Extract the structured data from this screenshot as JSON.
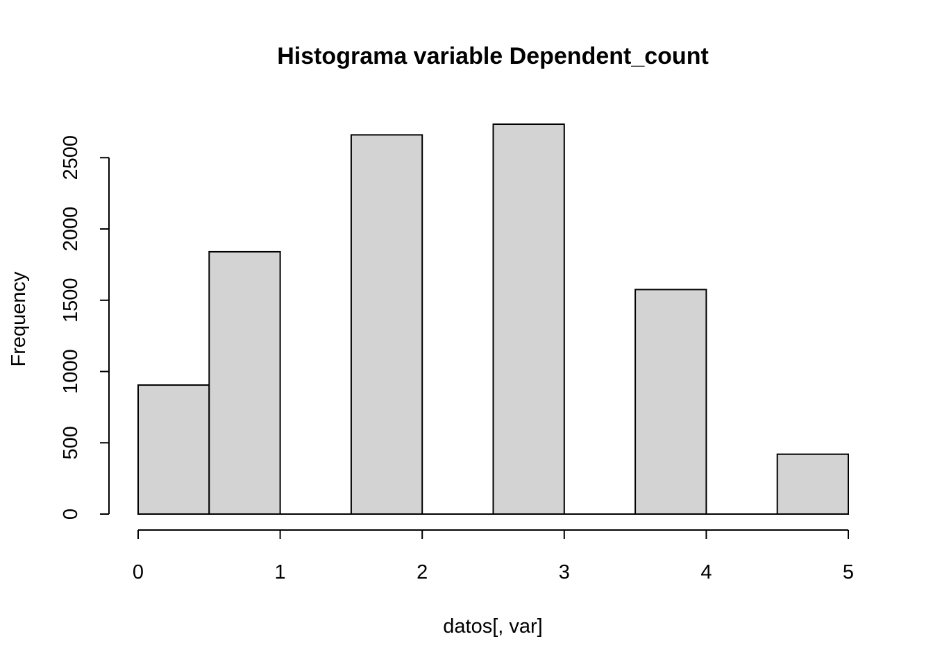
{
  "chart_data": {
    "type": "bar",
    "title": "Histograma variable Dependent_count",
    "xlabel": "datos[, var]",
    "ylabel": "Frequency",
    "bins": [
      {
        "start": 0.0,
        "end": 0.5,
        "count": 905
      },
      {
        "start": 0.5,
        "end": 1.0,
        "count": 1840
      },
      {
        "start": 1.0,
        "end": 1.5,
        "count": 0
      },
      {
        "start": 1.5,
        "end": 2.0,
        "count": 2660
      },
      {
        "start": 2.0,
        "end": 2.5,
        "count": 0
      },
      {
        "start": 2.5,
        "end": 3.0,
        "count": 2735
      },
      {
        "start": 3.0,
        "end": 3.5,
        "count": 0
      },
      {
        "start": 3.5,
        "end": 4.0,
        "count": 1575
      },
      {
        "start": 4.0,
        "end": 4.5,
        "count": 0
      },
      {
        "start": 4.5,
        "end": 5.0,
        "count": 420
      }
    ],
    "xlim": [
      0,
      5
    ],
    "ylim": [
      0,
      2735
    ],
    "x_ticks": [
      0,
      1,
      2,
      3,
      4,
      5
    ],
    "x_tick_labels": [
      "0",
      "1",
      "2",
      "3",
      "4",
      "5"
    ],
    "y_ticks": [
      0,
      500,
      1000,
      1500,
      2000,
      2500
    ],
    "y_tick_labels": [
      "0",
      "500",
      "1000",
      "1500",
      "2000",
      "2500"
    ],
    "grid": false,
    "legend": "none",
    "bar_fill": "#d3d3d3",
    "bar_stroke": "#000000"
  }
}
